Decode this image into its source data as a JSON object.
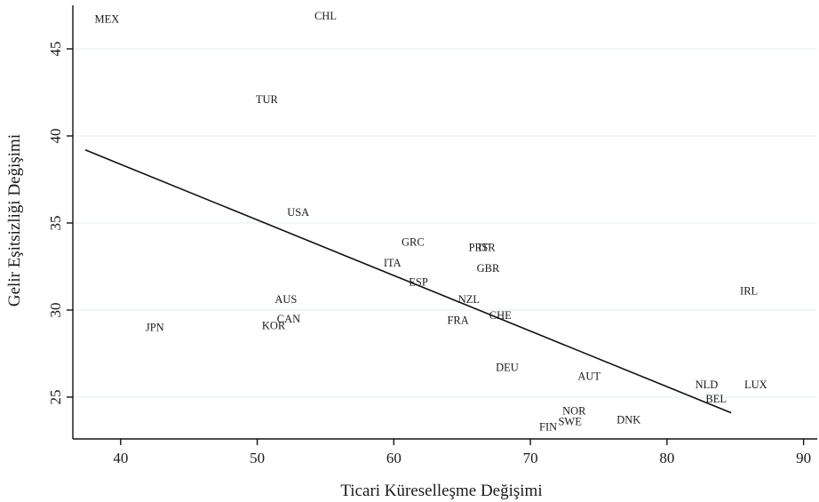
{
  "chart_data": {
    "type": "scatter",
    "xlabel": "Ticari Küreselleşme Değişimi",
    "ylabel": "Gelir Eşitsizliği Değişimi",
    "xlim": [
      36.5,
      91
    ],
    "ylim": [
      22.6,
      47.5
    ],
    "xticks": [
      40,
      50,
      60,
      70,
      80,
      90
    ],
    "yticks": [
      25,
      30,
      35,
      40,
      45
    ],
    "grid": true,
    "fit_line": {
      "x": [
        37.4,
        84.7
      ],
      "y": [
        39.2,
        24.1
      ]
    },
    "points": [
      {
        "label": "MEX",
        "x": 39.0,
        "y": 46.7
      },
      {
        "label": "CHL",
        "x": 55.0,
        "y": 46.9
      },
      {
        "label": "TUR",
        "x": 50.7,
        "y": 42.1
      },
      {
        "label": "USA",
        "x": 53.0,
        "y": 35.6
      },
      {
        "label": "GRC",
        "x": 61.4,
        "y": 33.9
      },
      {
        "label": "PRT",
        "x": 66.2,
        "y": 33.6
      },
      {
        "label": "ISR",
        "x": 66.8,
        "y": 33.6
      },
      {
        "label": "GBR",
        "x": 66.9,
        "y": 32.4
      },
      {
        "label": "ITA",
        "x": 59.9,
        "y": 32.7
      },
      {
        "label": "ESP",
        "x": 61.8,
        "y": 31.6
      },
      {
        "label": "NZL",
        "x": 65.5,
        "y": 30.6
      },
      {
        "label": "AUS",
        "x": 52.1,
        "y": 30.6
      },
      {
        "label": "CHE",
        "x": 67.8,
        "y": 29.7
      },
      {
        "label": "FRA",
        "x": 64.7,
        "y": 29.4
      },
      {
        "label": "CAN",
        "x": 52.3,
        "y": 29.5
      },
      {
        "label": "KOR",
        "x": 51.2,
        "y": 29.1
      },
      {
        "label": "JPN",
        "x": 42.5,
        "y": 29.0
      },
      {
        "label": "IRL",
        "x": 86.0,
        "y": 31.1
      },
      {
        "label": "DEU",
        "x": 68.3,
        "y": 26.7
      },
      {
        "label": "AUT",
        "x": 74.3,
        "y": 26.2
      },
      {
        "label": "NLD",
        "x": 82.9,
        "y": 25.7
      },
      {
        "label": "LUX",
        "x": 86.5,
        "y": 25.7
      },
      {
        "label": "BEL",
        "x": 83.6,
        "y": 24.9
      },
      {
        "label": "NOR",
        "x": 73.2,
        "y": 24.2
      },
      {
        "label": "SWE",
        "x": 72.9,
        "y": 23.6
      },
      {
        "label": "DNK",
        "x": 77.2,
        "y": 23.7
      },
      {
        "label": "FIN",
        "x": 71.3,
        "y": 23.3
      }
    ]
  }
}
